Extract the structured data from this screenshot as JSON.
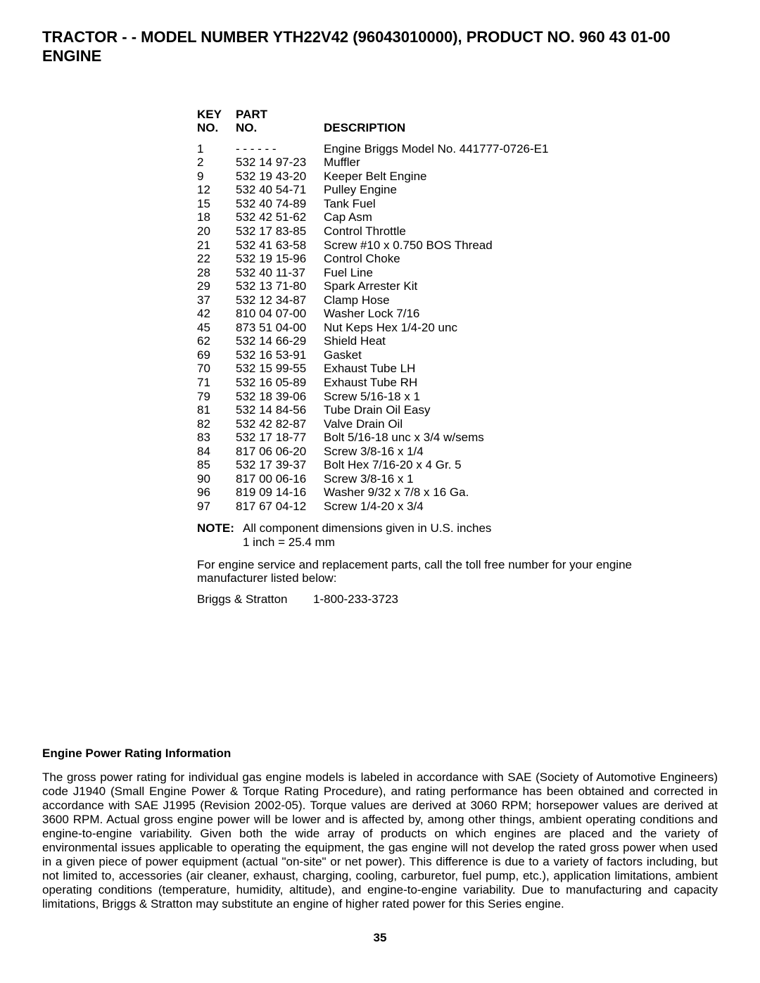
{
  "header": {
    "line1": "TRACTOR - - MODEL NUMBER YTH22V42 (96043010000), PRODUCT NO. 960 43 01-00",
    "line2": "ENGINE"
  },
  "table": {
    "columns": {
      "key_l1": "KEY",
      "key_l2": "NO.",
      "part_l1": "PART",
      "part_l2": "NO.",
      "desc": "DESCRIPTION"
    },
    "rows": [
      {
        "key": "1",
        "part": "- - - - - -",
        "desc": "Engine Briggs Model No. 441777-0726-E1"
      },
      {
        "key": "2",
        "part": "532 14 97-23",
        "desc": "Muffler"
      },
      {
        "key": "9",
        "part": "532 19 43-20",
        "desc": "Keeper Belt Engine"
      },
      {
        "key": "12",
        "part": "532 40 54-71",
        "desc": "Pulley Engine"
      },
      {
        "key": "15",
        "part": "532 40 74-89",
        "desc": "Tank Fuel"
      },
      {
        "key": "18",
        "part": "532 42 51-62",
        "desc": "Cap Asm"
      },
      {
        "key": "20",
        "part": "532 17 83-85",
        "desc": "Control Throttle"
      },
      {
        "key": "21",
        "part": "532 41 63-58",
        "desc": "Screw #10 x 0.750 BOS Thread"
      },
      {
        "key": "22",
        "part": "532 19 15-96",
        "desc": "Control Choke"
      },
      {
        "key": "28",
        "part": "532 40 11-37",
        "desc": "Fuel Line"
      },
      {
        "key": "29",
        "part": "532 13 71-80",
        "desc": "Spark Arrester Kit"
      },
      {
        "key": "37",
        "part": "532 12 34-87",
        "desc": "Clamp Hose"
      },
      {
        "key": "42",
        "part": "810 04 07-00",
        "desc": "Washer Lock 7/16"
      },
      {
        "key": "45",
        "part": "873 51 04-00",
        "desc": "Nut Keps Hex 1/4-20 unc"
      },
      {
        "key": "62",
        "part": "532 14 66-29",
        "desc": "Shield Heat"
      },
      {
        "key": "69",
        "part": "532 16 53-91",
        "desc": "Gasket"
      },
      {
        "key": "70",
        "part": "532 15 99-55",
        "desc": "Exhaust Tube LH"
      },
      {
        "key": "71",
        "part": "532 16 05-89",
        "desc": "Exhaust Tube RH"
      },
      {
        "key": "79",
        "part": "532 18 39-06",
        "desc": "Screw 5/16-18 x 1"
      },
      {
        "key": "81",
        "part": "532 14 84-56",
        "desc": "Tube Drain Oil Easy"
      },
      {
        "key": "82",
        "part": "532 42 82-87",
        "desc": "Valve Drain Oil"
      },
      {
        "key": "83",
        "part": "532 17 18-77",
        "desc": "Bolt 5/16-18 unc x 3/4 w/sems"
      },
      {
        "key": "84",
        "part": "817 06 06-20",
        "desc": "Screw 3/8-16 x 1/4"
      },
      {
        "key": "85",
        "part": "532 17 39-37",
        "desc": "Bolt Hex 7/16-20 x 4 Gr. 5"
      },
      {
        "key": "90",
        "part": "817 00 06-16",
        "desc": "Screw 3/8-16 x 1"
      },
      {
        "key": "96",
        "part": "819 09 14-16",
        "desc": "Washer 9/32 x 7/8 x 16 Ga."
      },
      {
        "key": "97",
        "part": "817 67 04-12",
        "desc": "Screw 1/4-20 x 3/4"
      }
    ]
  },
  "note": {
    "label": "NOTE:",
    "line1": "All component dimensions given in U.S. inches",
    "line2": "1 inch = 25.4 mm"
  },
  "service": {
    "text": "For engine service and replacement parts, call the toll free number for your engine manufacturer listed below:"
  },
  "manufacturer": {
    "name": "Briggs & Stratton",
    "phone": "1-800-233-3723"
  },
  "rating": {
    "title": "Engine Power Rating Information",
    "body": "The gross power rating for individual gas engine models is labeled in accordance with SAE (Society of Automotive Engineers) code J1940 (Small Engine Power & Torque Rating Procedure), and rating performance has been obtained and corrected in accordance with SAE J1995 (Revision 2002-05). Torque values are derived at 3060 RPM; horsepower values are derived at 3600 RPM. Actual gross engine power will be lower and is affected by, among other things, ambient operating conditions and engine-to-engine variability. Given both the wide array of products on which engines are placed and the variety of environmental issues applicable to operating the equipment, the gas engine will not develop the rated gross power when used in a given piece of power equipment (actual \"on-site\" or net power). This difference is due to a variety of factors including, but not limited to, accessories (air cleaner, exhaust, charging, cooling, carburetor, fuel pump, etc.), application limitations, ambient operating conditions (temperature, humidity, altitude), and engine-to-engine variability. Due to manufacturing and capacity limitations, Briggs & Stratton may substitute an engine of higher rated power for this Series engine."
  },
  "page_number": "35"
}
